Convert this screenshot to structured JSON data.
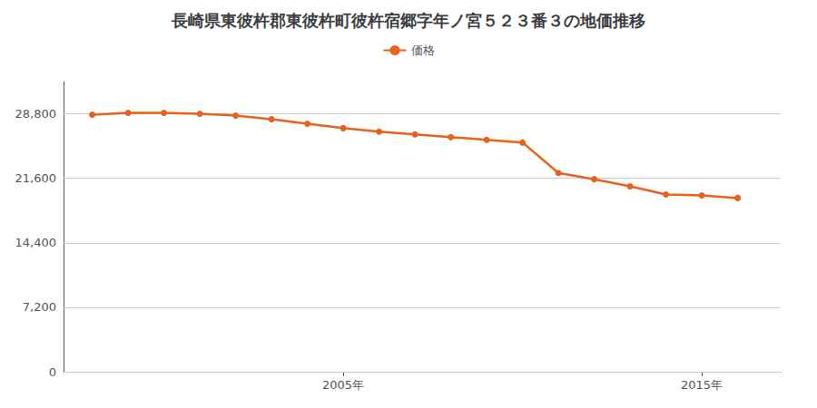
{
  "chart_data": {
    "type": "line",
    "title": "長崎県東彼杵郡東彼杵町彼杵宿郷字年ノ宮５２３番３の地価推移",
    "x": [
      1998,
      1999,
      2000,
      2001,
      2002,
      2003,
      2004,
      2005,
      2006,
      2007,
      2008,
      2009,
      2010,
      2011,
      2012,
      2013,
      2014,
      2015,
      2016
    ],
    "series": [
      {
        "name": "価格",
        "color": "#e8621a",
        "values": [
          28700,
          28900,
          28900,
          28800,
          28600,
          28200,
          27700,
          27200,
          26800,
          26500,
          26200,
          25900,
          25600,
          22200,
          21500,
          20700,
          19800,
          19700,
          19400
        ]
      }
    ],
    "xlim": [
      1997.2,
      2017.2
    ],
    "xticks": [
      {
        "value": 2005,
        "label": "2005年"
      },
      {
        "value": 2015,
        "label": "2015年"
      }
    ],
    "ylim": [
      0,
      32400
    ],
    "yticks": [
      0,
      {
        "value": 7200,
        "label": "7,200"
      },
      {
        "value": 14400,
        "label": "14,400"
      },
      {
        "value": 21600,
        "label": "21,600"
      },
      {
        "value": 28800,
        "label": "28,800"
      }
    ],
    "grid": true,
    "legend": "top",
    "marker": "circle"
  }
}
